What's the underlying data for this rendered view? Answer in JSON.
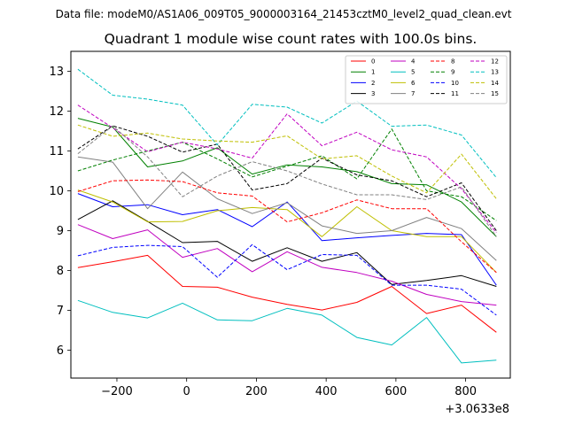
{
  "chart_data": {
    "type": "line",
    "suptitle": "Data file: modeM0/AS1A06_009T05_9000003164_21453cztM0_level2_quad_clean.evt",
    "title": "Quadrant 1 module wise count rates with 100.0s bins.",
    "xlabel": "",
    "ylabel": "",
    "x_offset_text": "+3.0633e8",
    "x": [
      -312,
      -212,
      -112,
      -12,
      88,
      188,
      288,
      388,
      488,
      588,
      688,
      788,
      888
    ],
    "xlim": [
      -332,
      928
    ],
    "ylim": [
      5.3,
      13.5
    ],
    "xticks": [
      -200,
      0,
      200,
      400,
      600,
      800
    ],
    "xtick_labels": [
      "−200",
      "0",
      "200",
      "400",
      "600",
      "800"
    ],
    "yticks": [
      6,
      7,
      8,
      9,
      10,
      11,
      12,
      13
    ],
    "ytick_labels": [
      "6",
      "7",
      "8",
      "9",
      "10",
      "11",
      "12",
      "13"
    ],
    "legend_position": "top-right",
    "legend_columns": 4,
    "series": [
      {
        "name": "0",
        "color": "#ff0000",
        "dash": "solid",
        "values": [
          8.07,
          8.22,
          8.38,
          7.6,
          7.58,
          7.33,
          7.15,
          7.01,
          7.2,
          7.6,
          6.92,
          7.13,
          6.45
        ]
      },
      {
        "name": "1",
        "color": "#008000",
        "dash": "solid",
        "values": [
          11.82,
          11.6,
          10.6,
          10.75,
          11.08,
          10.42,
          10.65,
          10.6,
          10.48,
          10.18,
          10.15,
          9.72,
          8.85
        ]
      },
      {
        "name": "2",
        "color": "#0000ff",
        "dash": "solid",
        "values": [
          9.93,
          9.6,
          9.65,
          9.4,
          9.53,
          9.1,
          9.72,
          8.75,
          8.82,
          8.88,
          8.93,
          8.9,
          7.63
        ]
      },
      {
        "name": "3",
        "color": "#000000",
        "dash": "solid",
        "values": [
          9.28,
          9.75,
          9.23,
          8.7,
          8.73,
          8.23,
          8.57,
          8.23,
          8.45,
          7.65,
          7.75,
          7.87,
          7.6
        ]
      },
      {
        "name": "4",
        "color": "#c000c0",
        "dash": "solid",
        "values": [
          9.15,
          8.8,
          9.02,
          8.33,
          8.55,
          7.97,
          8.47,
          8.08,
          7.95,
          7.73,
          7.4,
          7.22,
          7.13
        ]
      },
      {
        "name": "5",
        "color": "#00bfbf",
        "dash": "solid",
        "values": [
          7.25,
          6.95,
          6.81,
          7.18,
          6.76,
          6.74,
          7.05,
          6.88,
          6.32,
          6.13,
          6.82,
          5.68,
          5.75
        ]
      },
      {
        "name": "6",
        "color": "#bfbf00",
        "dash": "solid",
        "values": [
          10.02,
          9.72,
          9.22,
          9.23,
          9.5,
          9.58,
          9.53,
          8.85,
          9.6,
          9.0,
          8.85,
          8.85,
          7.95
        ]
      },
      {
        "name": "7",
        "color": "#808080",
        "dash": "solid",
        "values": [
          10.85,
          10.72,
          9.55,
          10.47,
          9.8,
          9.43,
          9.7,
          9.12,
          8.93,
          9.0,
          9.33,
          9.05,
          8.25
        ]
      },
      {
        "name": "8",
        "color": "#ff0000",
        "dash": "dashed",
        "values": [
          9.98,
          10.25,
          10.27,
          10.23,
          9.95,
          9.87,
          9.22,
          9.45,
          9.77,
          9.55,
          9.55,
          8.72,
          7.95
        ]
      },
      {
        "name": "9",
        "color": "#008000",
        "dash": "dashed",
        "values": [
          10.5,
          10.77,
          11.0,
          11.22,
          10.8,
          10.35,
          10.62,
          10.88,
          10.3,
          11.55,
          10.0,
          9.85,
          9.25
        ]
      },
      {
        "name": "10",
        "color": "#0000ff",
        "dash": "dashed",
        "values": [
          8.37,
          8.58,
          8.63,
          8.6,
          7.83,
          8.65,
          8.02,
          8.4,
          8.38,
          7.63,
          7.63,
          7.53,
          6.88
        ]
      },
      {
        "name": "11",
        "color": "#000000",
        "dash": "dashed",
        "values": [
          11.05,
          11.63,
          11.37,
          10.97,
          11.17,
          10.02,
          10.18,
          10.82,
          10.4,
          10.25,
          9.85,
          10.2,
          9.0
        ]
      },
      {
        "name": "12",
        "color": "#c000c0",
        "dash": "dashed",
        "values": [
          12.15,
          11.58,
          10.98,
          11.22,
          11.05,
          10.82,
          11.93,
          11.13,
          11.47,
          11.03,
          10.85,
          10.05,
          8.95
        ]
      },
      {
        "name": "13",
        "color": "#00bfbf",
        "dash": "dashed",
        "values": [
          13.05,
          12.4,
          12.3,
          12.15,
          11.15,
          12.17,
          12.1,
          11.7,
          12.25,
          11.62,
          11.65,
          11.4,
          10.33
        ]
      },
      {
        "name": "14",
        "color": "#bfbf00",
        "dash": "dashed",
        "values": [
          11.65,
          11.37,
          11.45,
          11.3,
          11.25,
          11.22,
          11.38,
          10.8,
          10.88,
          10.37,
          9.95,
          10.92,
          9.8
        ]
      },
      {
        "name": "15",
        "color": "#808080",
        "dash": "dashed",
        "values": [
          10.93,
          11.63,
          10.85,
          9.85,
          10.37,
          10.73,
          10.5,
          10.17,
          9.9,
          9.9,
          9.78,
          10.1,
          8.85
        ]
      }
    ]
  }
}
